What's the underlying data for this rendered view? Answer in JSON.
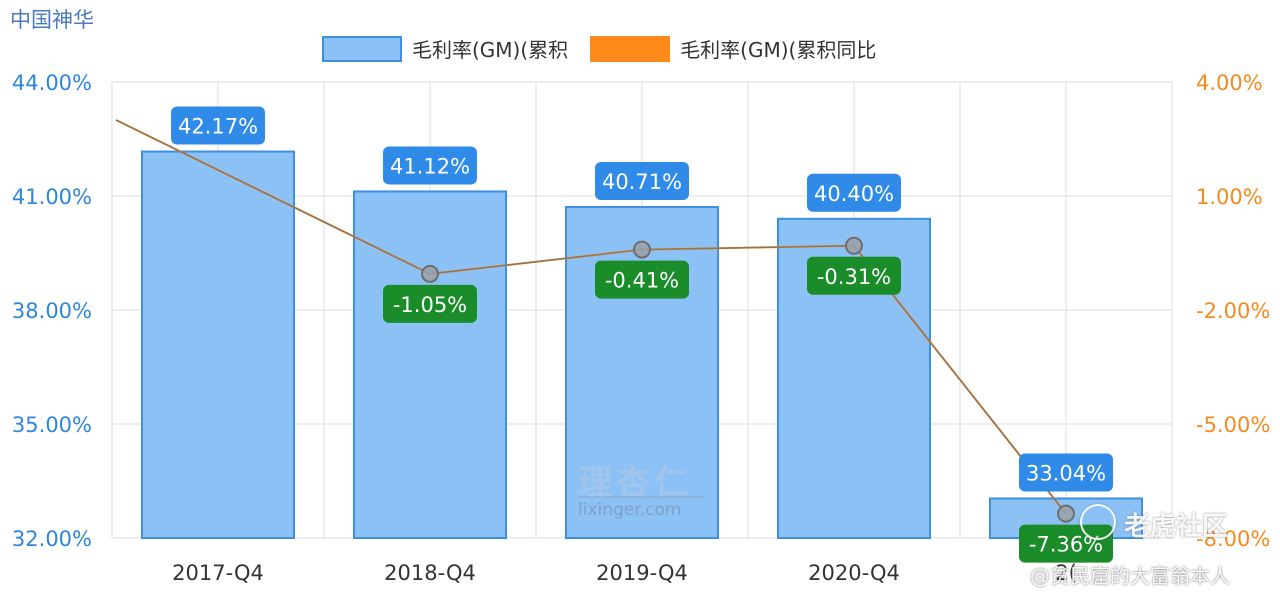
{
  "header": {
    "company": "中国神华"
  },
  "watermarks": {
    "brand_cn": "理杏仁",
    "brand_en": "lixinger.com",
    "tiger": "老虎社区",
    "author": "@贫民窟的大富翁本人"
  },
  "chart_data": {
    "type": "bar",
    "categories": [
      "2017-Q4",
      "2018-Q4",
      "2019-Q4",
      "2020-Q4",
      "2021-Q4"
    ],
    "category_labels": [
      "2017-Q4",
      "2018-Q4",
      "2019-Q4",
      "2020-Q4",
      "2("
    ],
    "series": [
      {
        "name": "毛利率(GM)(累积",
        "type": "bar",
        "axis": "left",
        "values": [
          42.17,
          41.12,
          40.71,
          40.4,
          33.04
        ],
        "labels": [
          "42.17%",
          "41.12%",
          "40.71%",
          "40.40%",
          "33.04%"
        ]
      },
      {
        "name": "毛利率(GM)(累积同比",
        "type": "line",
        "axis": "right",
        "values": [
          null,
          -1.05,
          -0.41,
          -0.31,
          -7.36
        ],
        "labels": [
          "",
          "-1.05%",
          "-0.41%",
          "-0.31%",
          "-7.36%"
        ]
      }
    ],
    "y_left": {
      "ylim": [
        32,
        44
      ],
      "ticks": [
        "32.00%",
        "35.00%",
        "38.00%",
        "41.00%",
        "44.00%"
      ],
      "tick_values": [
        32,
        35,
        38,
        41,
        44
      ]
    },
    "y_right": {
      "ylim": [
        -8,
        4
      ],
      "ticks": [
        "-8.00%",
        "-5.00%",
        "-2.00%",
        "1.00%",
        "4.00%"
      ],
      "tick_values": [
        -8,
        -5,
        -2,
        1,
        4
      ]
    },
    "line_extra_start": 3.0,
    "grid": true,
    "legend_position": "top-center",
    "colors": {
      "bar_fill": "#8cc1f5",
      "bar_stroke": "#3d8fe0",
      "bar_label_bg": "#2f8ae8",
      "line": "#fb8a1a",
      "line_upper": "#6e6e6e",
      "line_label_bg": "#1b8c2a",
      "left_axis_text": "#2f86d9",
      "right_axis_text": "#f58a1f",
      "grid": "#d9dde3"
    }
  }
}
